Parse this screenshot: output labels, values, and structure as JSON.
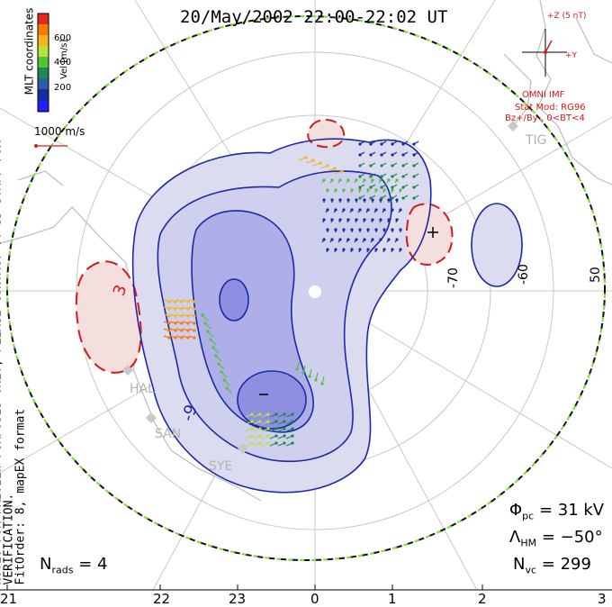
{
  "header": {
    "title": "20/May/2002 22:00-22:02 UT",
    "coordinates": "MLT coordinates",
    "note": "NOTE: FOR PREVIEW PURPOSES ONLY, PLEASE CONTACT VT-SD STAFF FOR VERIFICATION.",
    "fit": "FitOrder: 8, mapEX format"
  },
  "colorbar": {
    "label": "Vel [m/s]",
    "ticks": [
      "600",
      "400",
      "200"
    ],
    "colors": [
      "#e8261b",
      "#ff7a00",
      "#f4b41a",
      "#bfe23a",
      "#55c23a",
      "#1f8a4c",
      "#2a5fa8",
      "#1a2aa0",
      "#1f1fff"
    ]
  },
  "scale": {
    "label": "1000 m/s"
  },
  "imf": {
    "z_label": "+Z (5 nT)",
    "y_label": "+Y",
    "source": "OMNI IMF",
    "model": "Stat Mod: RG96",
    "condition": "Bz+/By-, 0<BT<4"
  },
  "contours": {
    "neg_label": "-9",
    "pos_label": "3",
    "min_marker": "−",
    "max_marker": "+"
  },
  "stations": [
    "TIG",
    "HAL",
    "SAN",
    "SYE"
  ],
  "latitudes": [
    "-70",
    "-60",
    "50"
  ],
  "stats": {
    "phi_sym": "Φ",
    "phi_sub": "pc",
    "phi_val": "= 31 kV",
    "lam_sym": "Λ",
    "lam_sub": "HM",
    "lam_val": "= −50°",
    "nvc_sym": "N",
    "nvc_sub": "vc",
    "nvc_val": "= 299",
    "nrads_sym": "N",
    "nrads_sub": "rads",
    "nrads_val": "= 4"
  },
  "mlt_ticks": [
    "21",
    "22",
    "23",
    "0",
    "1",
    "2",
    "3"
  ],
  "colors": {
    "contour_blue": "#1a2aa8",
    "contour_red": "#d41a1a",
    "potential_fill": "#c9c9ec",
    "land": "#bfbfbf"
  }
}
